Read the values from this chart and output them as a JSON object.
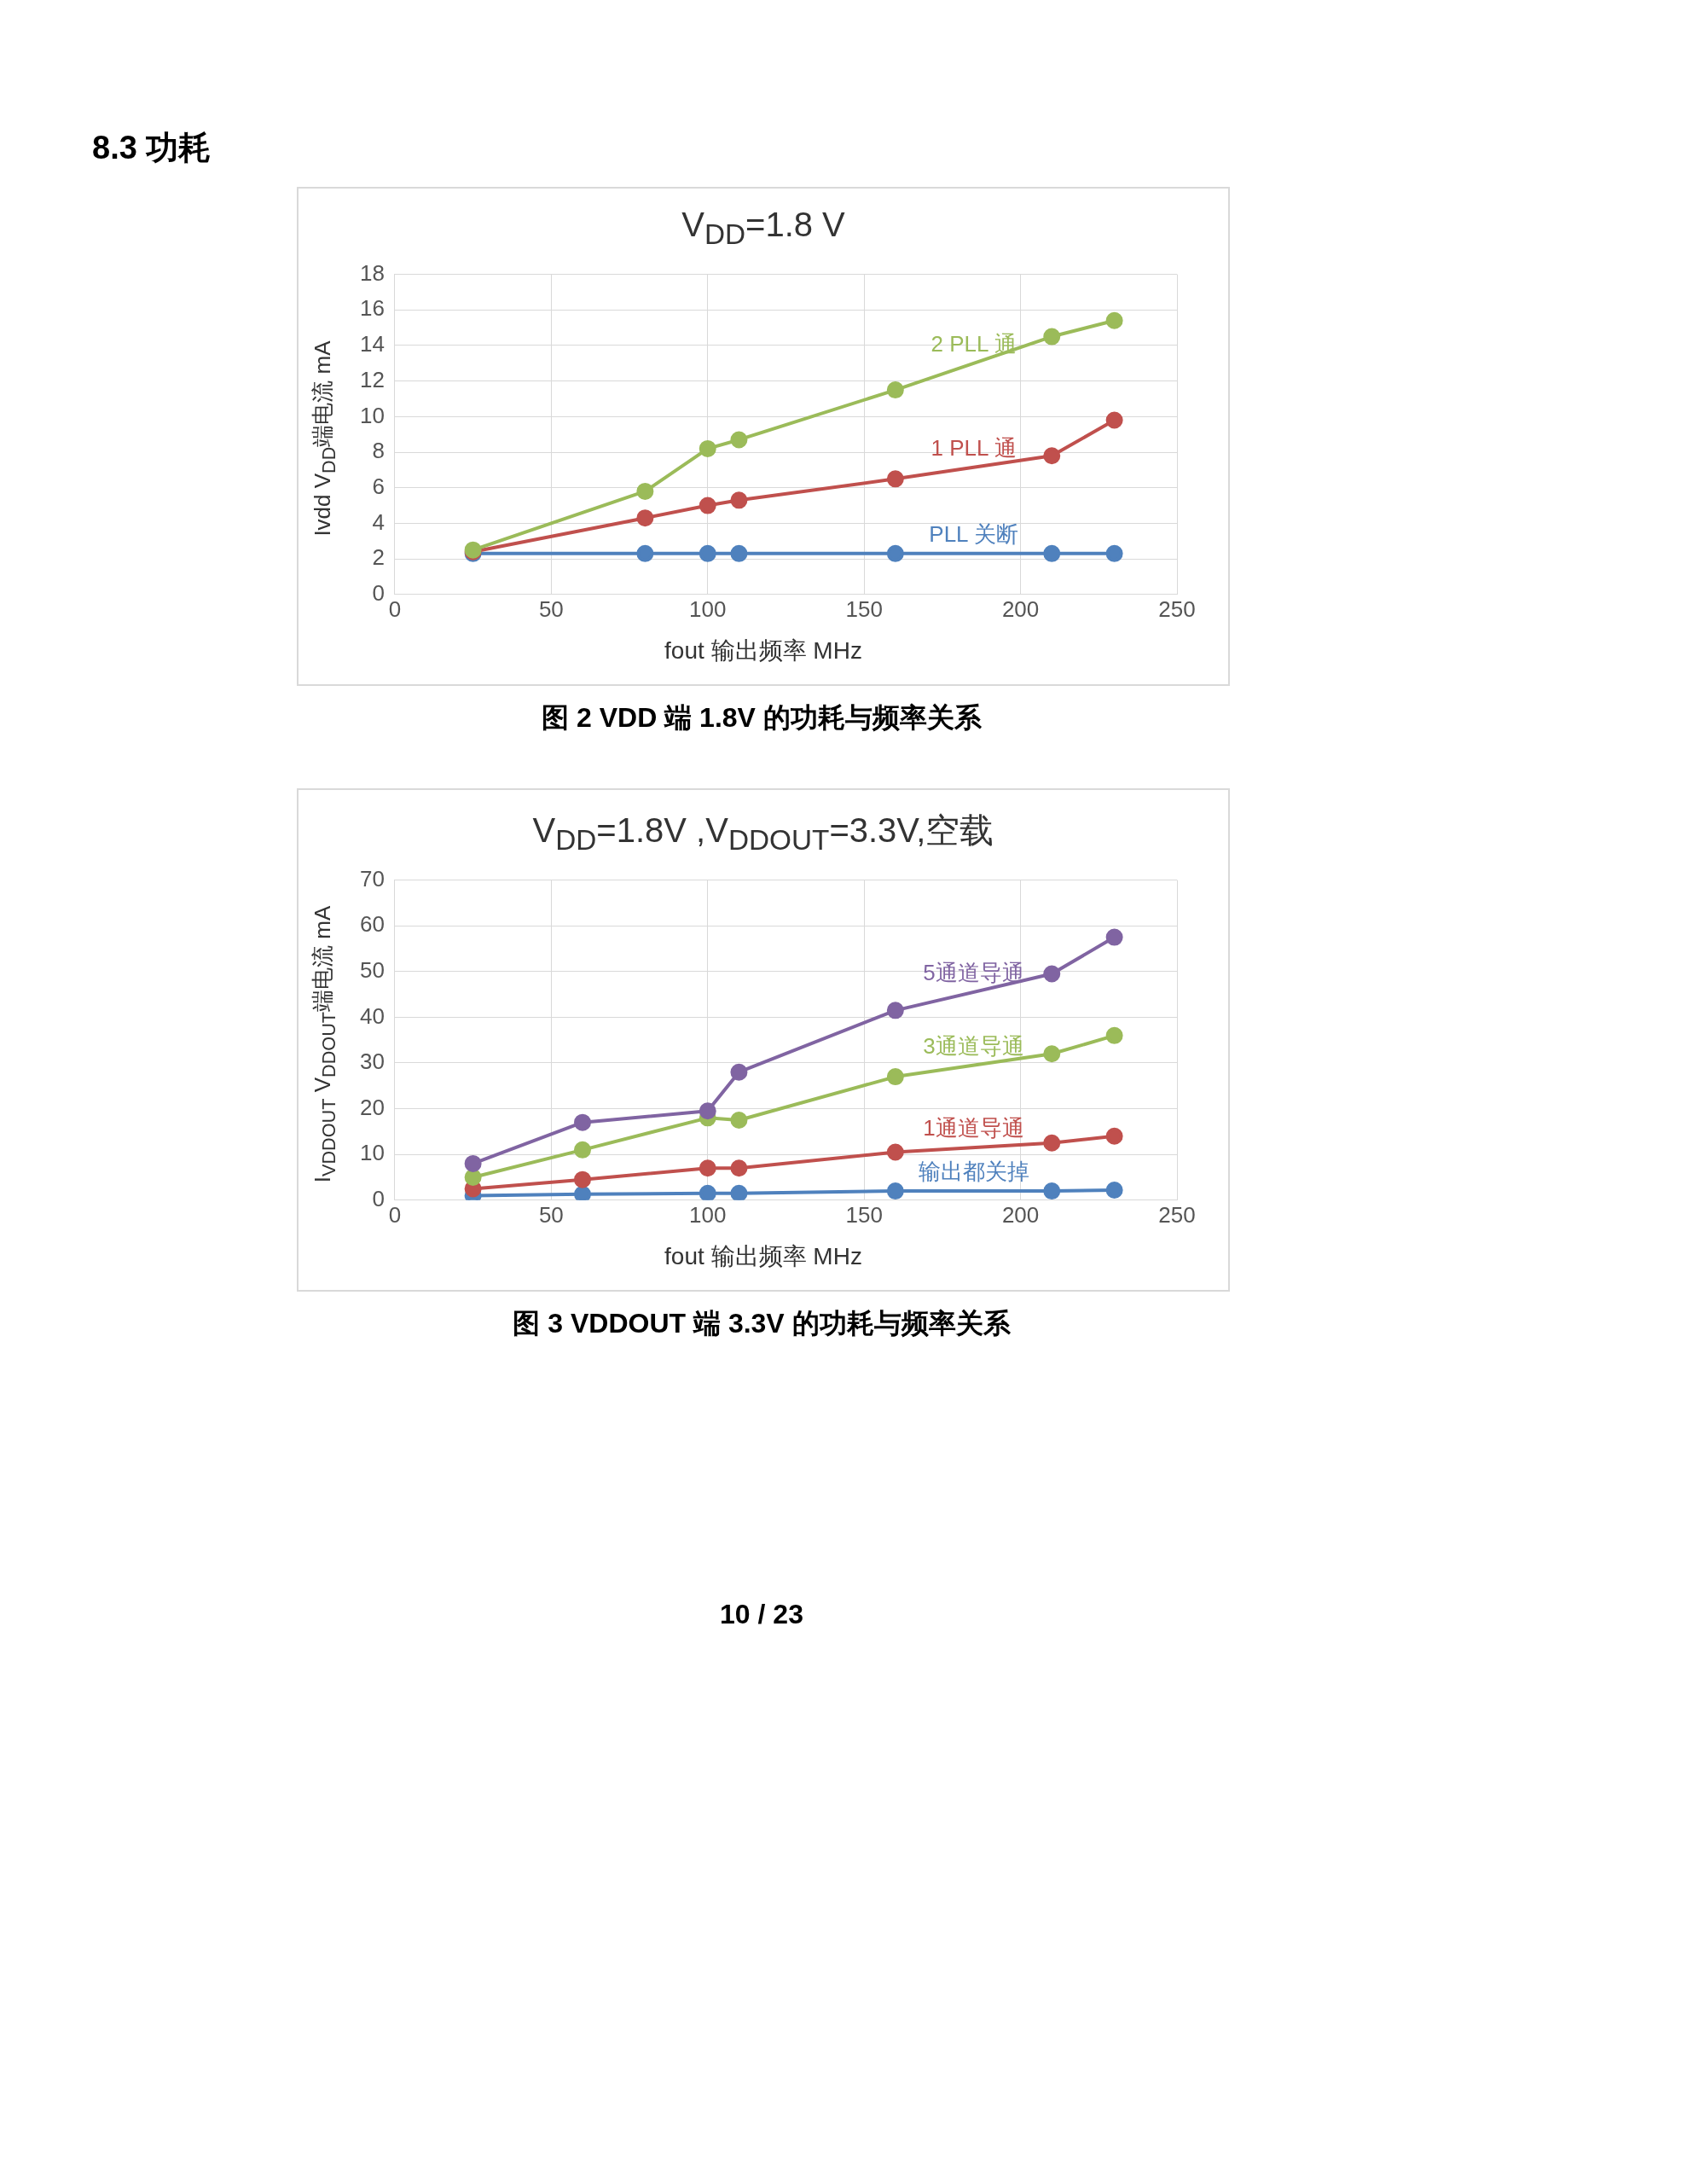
{
  "chart_data": [
    {
      "type": "line",
      "title": "V$_{DD}$=1.8 V",
      "xlabel": "fout 输出频率  MHz",
      "ylabel": "Ivdd  V$_{DD}$端电流 mA",
      "x": [
        25,
        80,
        100,
        110,
        160,
        210,
        230
      ],
      "series": [
        {
          "name": "2 PLL 通",
          "color": "#9bbb59",
          "values": [
            2.5,
            5.8,
            8.2,
            8.7,
            11.5,
            14.5,
            15.4
          ]
        },
        {
          "name": "1 PLL 通",
          "color": "#c0504d",
          "values": [
            2.4,
            4.3,
            5.0,
            5.3,
            6.5,
            7.8,
            9.8
          ]
        },
        {
          "name": "PLL 关断",
          "color": "#4f81bd",
          "values": [
            2.3,
            2.3,
            2.3,
            2.3,
            2.3,
            2.3,
            2.3
          ]
        }
      ],
      "xlim": [
        0,
        250
      ],
      "xticks": [
        0,
        50,
        100,
        150,
        200,
        250
      ],
      "ylim": [
        0,
        18
      ],
      "yticks": [
        0,
        2,
        4,
        6,
        8,
        10,
        12,
        14,
        16,
        18
      ],
      "grid": true,
      "legend": false,
      "marker": "circle",
      "line_style": "solid",
      "annotations": [
        "8.3 功耗",
        "图 2 VDD 端 1.8V 的功耗与频率关系"
      ]
    },
    {
      "type": "line",
      "title": "V$_{DD}$=1.8V ,V$_{DDOUT}$=3.3V,空载",
      "xlabel": "fout 输出频率 MHz",
      "ylabel": "I$_{VDDOUT}$  V$_{DDOUT}$端电流 mA",
      "x": [
        25,
        60,
        100,
        110,
        160,
        210,
        230
      ],
      "series": [
        {
          "name": "5通道导通",
          "color": "#8064a2",
          "values": [
            8,
            17,
            19.5,
            28,
            41.5,
            49.5,
            57.5
          ]
        },
        {
          "name": "3通道导通",
          "color": "#9bbb59",
          "values": [
            5,
            11,
            18,
            17.5,
            27,
            32,
            36
          ]
        },
        {
          "name": "1通道导通",
          "color": "#c0504d",
          "values": [
            2.5,
            4.5,
            7,
            7,
            10.5,
            12.5,
            14
          ]
        },
        {
          "name": "输出都关掉",
          "color": "#4f81bd",
          "values": [
            1,
            1.3,
            1.5,
            1.5,
            2,
            2,
            2.2
          ]
        }
      ],
      "xlim": [
        0,
        250
      ],
      "xticks": [
        0,
        50,
        100,
        150,
        200,
        250
      ],
      "ylim": [
        0,
        70
      ],
      "yticks": [
        0,
        10,
        20,
        30,
        40,
        50,
        60,
        70
      ],
      "grid": true,
      "legend": false,
      "marker": "circle",
      "line_style": "solid",
      "annotations": [
        "图 3 VDDOUT 端 3.3V 的功耗与频率关系",
        "10 / 23"
      ]
    }
  ]
}
